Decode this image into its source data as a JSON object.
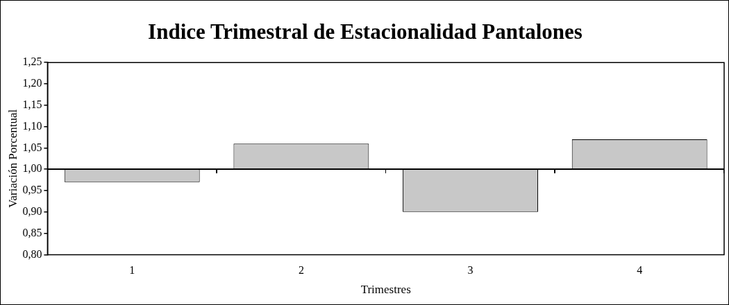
{
  "chart_data": {
    "type": "bar",
    "title": "Indice Trimestral de Estacionalidad Pantalones",
    "xlabel": "Trimestres",
    "ylabel": "Variación Porcentual",
    "categories": [
      "1",
      "2",
      "3",
      "4"
    ],
    "base": [
      1,
      1,
      1,
      1
    ],
    "values": [
      -0.03,
      0.06,
      -0.1,
      0.07
    ],
    "color": "#c8c8c8",
    "ylim": [
      0.8,
      1.25
    ],
    "yticks": [
      {
        "value": 0.8,
        "label": "0,80"
      },
      {
        "value": 0.85,
        "label": "0,85"
      },
      {
        "value": 0.9,
        "label": "0,90"
      },
      {
        "value": 0.95,
        "label": "0,95"
      },
      {
        "value": 1.0,
        "label": "1,00"
      },
      {
        "value": 1.05,
        "label": "1,05"
      },
      {
        "value": 1.1,
        "label": "1,10"
      },
      {
        "value": 1.15,
        "label": "1,15"
      },
      {
        "value": 1.2,
        "label": "1,20"
      },
      {
        "value": 1.25,
        "label": "1,25"
      }
    ]
  }
}
